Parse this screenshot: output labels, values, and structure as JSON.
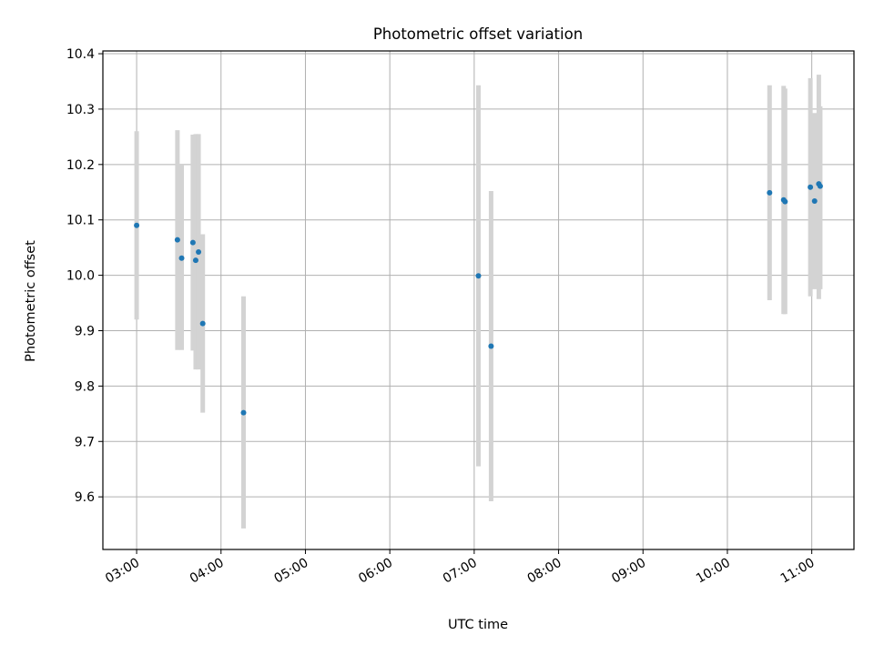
{
  "chart_data": {
    "type": "scatter",
    "title": "Photometric offset variation",
    "xlabel": "UTC time",
    "ylabel": "Photometric offset",
    "x_unit": "time of day (HH:MM, UTC)",
    "xlim": [
      "02:36",
      "11:30"
    ],
    "ylim": [
      9.505,
      10.405
    ],
    "xticks": [
      "03:00",
      "04:00",
      "05:00",
      "06:00",
      "07:00",
      "08:00",
      "09:00",
      "10:00",
      "11:00"
    ],
    "yticks": [
      "9.6",
      "9.7",
      "9.8",
      "9.9",
      "10.0",
      "10.1",
      "10.2",
      "10.3",
      "10.4"
    ],
    "grid": true,
    "legend": "none",
    "colors": {
      "points": "#1f77b4",
      "errorbars": "#d3d3d3",
      "grid": "#b0b0b0"
    },
    "points": [
      {
        "x": "03:00",
        "y": 10.09,
        "low": 9.92,
        "high": 10.26
      },
      {
        "x": "03:29",
        "y": 10.064,
        "low": 9.865,
        "high": 10.262
      },
      {
        "x": "03:32",
        "y": 10.031,
        "low": 9.865,
        "high": 10.2
      },
      {
        "x": "03:40",
        "y": 10.059,
        "low": 9.864,
        "high": 10.254
      },
      {
        "x": "03:42",
        "y": 10.027,
        "low": 9.83,
        "high": 10.255
      },
      {
        "x": "03:44",
        "y": 10.042,
        "low": 9.83,
        "high": 10.255
      },
      {
        "x": "03:47",
        "y": 9.913,
        "low": 9.752,
        "high": 10.074
      },
      {
        "x": "04:16",
        "y": 9.752,
        "low": 9.543,
        "high": 9.962
      },
      {
        "x": "07:03",
        "y": 9.999,
        "low": 9.655,
        "high": 10.343
      },
      {
        "x": "07:12",
        "y": 9.872,
        "low": 9.592,
        "high": 10.152
      },
      {
        "x": "10:30",
        "y": 10.149,
        "low": 9.955,
        "high": 10.343
      },
      {
        "x": "10:40",
        "y": 10.136,
        "low": 9.93,
        "high": 10.342
      },
      {
        "x": "10:41",
        "y": 10.133,
        "low": 9.93,
        "high": 10.337
      },
      {
        "x": "10:59",
        "y": 10.159,
        "low": 9.962,
        "high": 10.356
      },
      {
        "x": "11:02",
        "y": 10.134,
        "low": 9.975,
        "high": 10.293
      },
      {
        "x": "11:05",
        "y": 10.165,
        "low": 9.957,
        "high": 10.362
      },
      {
        "x": "11:06",
        "y": 10.161,
        "low": 9.975,
        "high": 10.305
      }
    ]
  }
}
